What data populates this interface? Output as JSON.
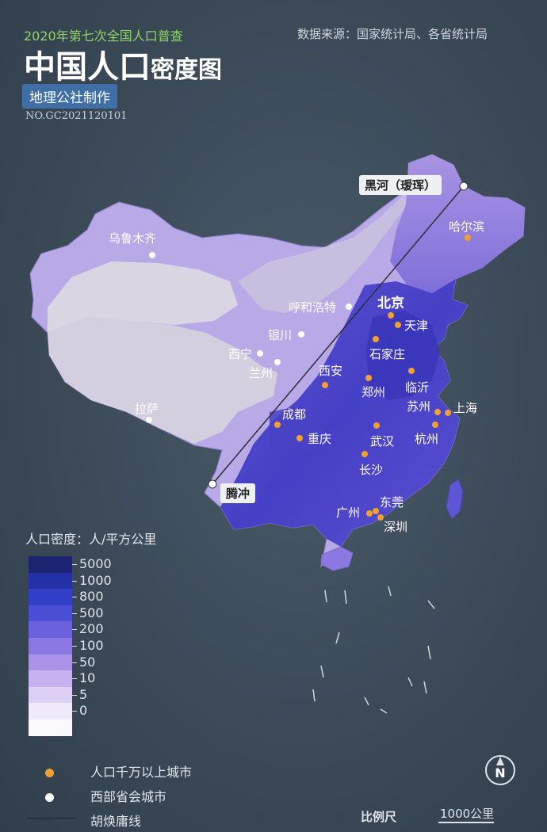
{
  "header": {
    "subtitle": "2020年第七次全国人口普查",
    "title_main": "中国人口",
    "title_suffix": "密度图",
    "maker": "地理公社制作",
    "serial": "NO.GC2021120101",
    "source": "数据来源：国家统计局、各省统计局"
  },
  "line_endpoints": {
    "north": "黑河（瑷珲）",
    "south": "腾冲"
  },
  "cities": [
    {
      "name": "乌鲁木齐",
      "type": "west"
    },
    {
      "name": "哈尔滨",
      "type": "big"
    },
    {
      "name": "呼和浩特",
      "type": "west"
    },
    {
      "name": "北京",
      "type": "big"
    },
    {
      "name": "天津",
      "type": "big"
    },
    {
      "name": "银川",
      "type": "west"
    },
    {
      "name": "石家庄",
      "type": "big"
    },
    {
      "name": "西宁",
      "type": "west"
    },
    {
      "name": "兰州",
      "type": "west"
    },
    {
      "name": "西安",
      "type": "big"
    },
    {
      "name": "郑州",
      "type": "big"
    },
    {
      "name": "临沂",
      "type": "big"
    },
    {
      "name": "苏州",
      "type": "big"
    },
    {
      "name": "上海",
      "type": "big"
    },
    {
      "name": "拉萨",
      "type": "west"
    },
    {
      "name": "成都",
      "type": "big"
    },
    {
      "name": "重庆",
      "type": "big"
    },
    {
      "name": "武汉",
      "type": "big"
    },
    {
      "name": "杭州",
      "type": "big"
    },
    {
      "name": "长沙",
      "type": "big"
    },
    {
      "name": "东莞",
      "type": "big"
    },
    {
      "name": "广州",
      "type": "big"
    },
    {
      "name": "深圳",
      "type": "big"
    }
  ],
  "legend": {
    "title": "人口密度：人/平方公里",
    "ticks": [
      "5000",
      "1000",
      "800",
      "500",
      "200",
      "100",
      "50",
      "10",
      "5",
      "0"
    ],
    "colors": [
      "#1d2472",
      "#2330a6",
      "#3140c6",
      "#4a4fd6",
      "#6a62dc",
      "#8b78e2",
      "#a994e8",
      "#c6b2ef",
      "#ddd0f5",
      "#efe9fa",
      "#fbf9fe"
    ]
  },
  "key": {
    "big_city": "人口千万以上城市",
    "west_capital": "西部省会城市",
    "hu_line": "胡焕庸线"
  },
  "scale": {
    "label": "比例尺",
    "value": "1000公里"
  },
  "compass_letter": "N",
  "colors": {
    "big_city_dot": "#f0a132",
    "west_capital_dot": "#ffffff",
    "accent_green": "#8fd36a"
  }
}
